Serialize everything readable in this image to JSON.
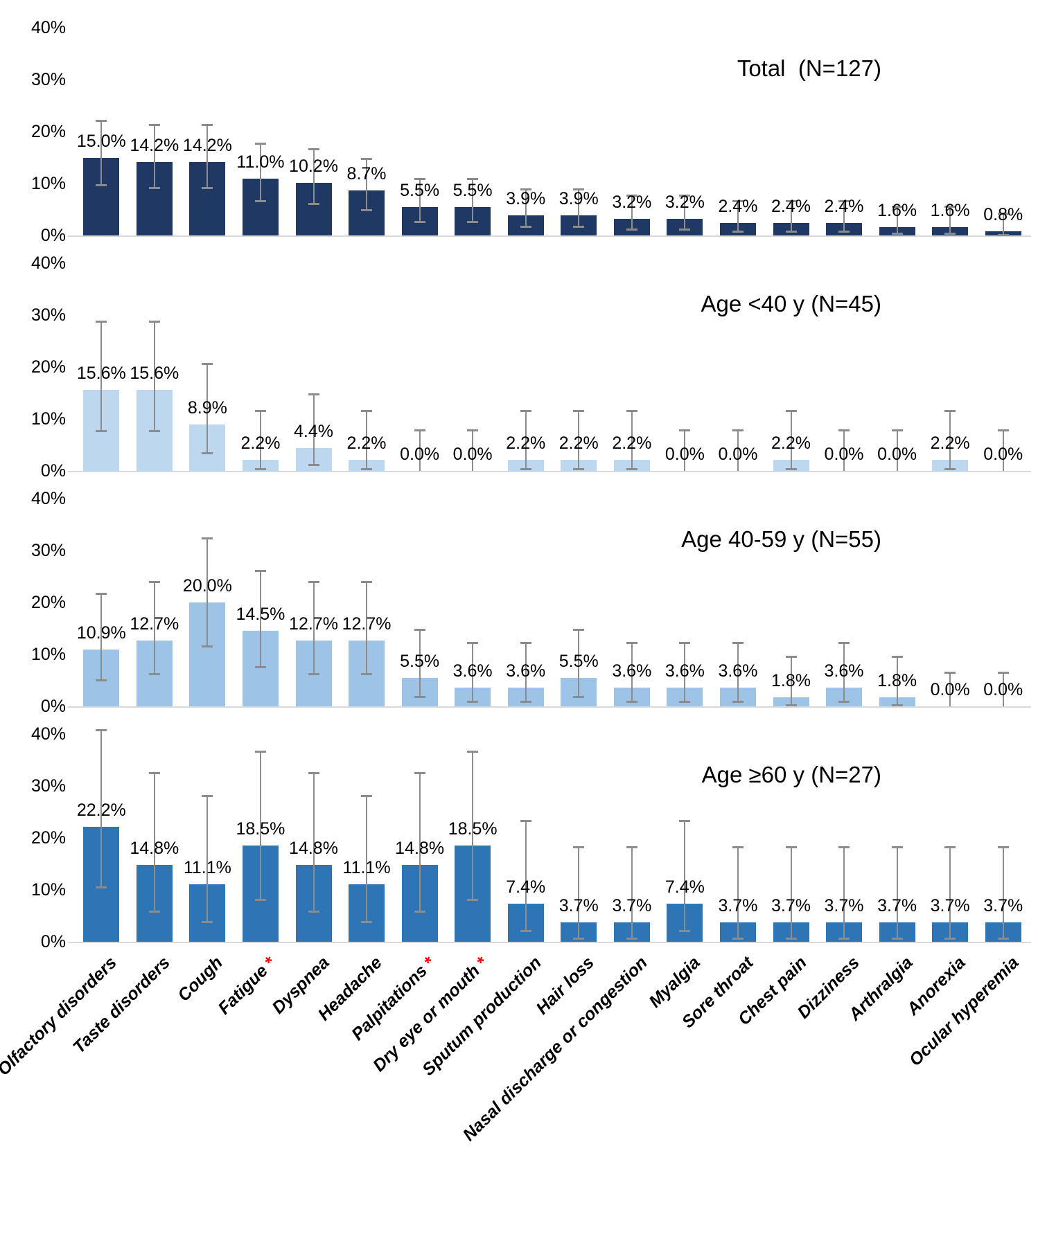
{
  "chart_data": {
    "type": "bar",
    "description": "Prevalence of persistent symptoms with 95% confidence interval error bars, shown for the total cohort and three age subgroups",
    "categories": [
      "Olfactory disorders",
      "Taste disorders",
      "Cough",
      "Fatigue",
      "Dyspnea",
      "Headache",
      "Palpitations",
      "Dry eye or mouth",
      "Sputum production",
      "Hair loss",
      "Nasal discharge or congestion",
      "Myalgia",
      "Sore throat",
      "Chest pain",
      "Dizziness",
      "Arthralgia",
      "Anorexia",
      "Ocular hyperemia"
    ],
    "starred_categories": [
      "Fatigue",
      "Palpitations",
      "Dry eye or mouth"
    ],
    "star_symbol": "*",
    "annotation_star_color": "#ff0000",
    "x_tick_rotation_deg": 45,
    "ylim": [
      0,
      40
    ],
    "yticks": [
      "40%",
      "30%",
      "20%",
      "10%",
      "0%"
    ],
    "value_suffix": "%",
    "error_bars": true,
    "error_bar_color": "#8c8c8c",
    "axis_line_color": "#d9d9d9",
    "series": [
      {
        "name": "Total  (N=127)",
        "n": 127,
        "color": "#1f3864",
        "values": [
          15.0,
          14.2,
          14.2,
          11.0,
          10.2,
          8.7,
          5.5,
          5.5,
          3.9,
          3.9,
          3.2,
          3.2,
          2.4,
          2.4,
          2.4,
          1.6,
          1.6,
          0.8
        ],
        "labels": [
          "15.0%",
          "14.2%",
          "14.2%",
          "11.0%",
          "10.2%",
          "8.7%",
          "5.5%",
          "5.5%",
          "3.9%",
          "3.9%",
          "3.2%",
          "3.2%",
          "2.4%",
          "2.4%",
          "2.4%",
          "1.6%",
          "1.6%",
          "0.8%"
        ],
        "ci_low": [
          9.8,
          9.2,
          9.2,
          6.7,
          6.1,
          4.9,
          2.7,
          2.7,
          1.7,
          1.7,
          1.2,
          1.2,
          0.8,
          0.8,
          0.8,
          0.4,
          0.4,
          0.1
        ],
        "ci_high": [
          22.2,
          21.3,
          21.3,
          17.7,
          16.7,
          14.8,
          10.9,
          10.9,
          8.9,
          8.9,
          7.8,
          7.8,
          6.7,
          6.7,
          6.7,
          5.6,
          5.6,
          4.3
        ]
      },
      {
        "name": "Age <40 y (N=45)",
        "n": 45,
        "color": "#bdd7ee",
        "values": [
          15.6,
          15.6,
          8.9,
          2.2,
          4.4,
          2.2,
          0.0,
          0.0,
          2.2,
          2.2,
          2.2,
          0.0,
          0.0,
          2.2,
          0.0,
          0.0,
          2.2,
          0.0
        ],
        "labels": [
          "15.6%",
          "15.6%",
          "8.9%",
          "2.2%",
          "4.4%",
          "2.2%",
          "0.0%",
          "0.0%",
          "2.2%",
          "2.2%",
          "2.2%",
          "0.0%",
          "0.0%",
          "2.2%",
          "0.0%",
          "0.0%",
          "2.2%",
          "0.0%"
        ],
        "ci_low": [
          7.8,
          7.8,
          3.5,
          0.4,
          1.2,
          0.4,
          0.0,
          0.0,
          0.4,
          0.4,
          0.4,
          0.0,
          0.0,
          0.4,
          0.0,
          0.0,
          0.4,
          0.0
        ],
        "ci_high": [
          28.8,
          28.8,
          20.7,
          11.6,
          14.8,
          11.6,
          7.9,
          7.9,
          11.6,
          11.6,
          11.6,
          7.9,
          7.9,
          11.6,
          7.9,
          7.9,
          11.6,
          7.9
        ]
      },
      {
        "name": "Age 40-59 y (N=55)",
        "n": 55,
        "color": "#9dc3e6",
        "values": [
          10.9,
          12.7,
          20.0,
          14.5,
          12.7,
          12.7,
          5.5,
          3.6,
          3.6,
          5.5,
          3.6,
          3.6,
          3.6,
          1.8,
          3.6,
          1.8,
          0.0,
          0.0
        ],
        "labels": [
          "10.9%",
          "12.7%",
          "20.0%",
          "14.5%",
          "12.7%",
          "12.7%",
          "5.5%",
          "3.6%",
          "3.6%",
          "5.5%",
          "3.6%",
          "3.6%",
          "3.6%",
          "1.8%",
          "3.6%",
          "1.8%",
          "0.0%",
          "0.0%"
        ],
        "ci_low": [
          5.1,
          6.3,
          11.6,
          7.6,
          6.3,
          6.3,
          1.9,
          1.0,
          1.0,
          1.9,
          1.0,
          1.0,
          1.0,
          0.3,
          1.0,
          0.3,
          0.0,
          0.0
        ],
        "ci_high": [
          21.8,
          24.0,
          32.4,
          26.2,
          24.0,
          24.0,
          14.8,
          12.3,
          12.3,
          14.8,
          12.3,
          12.3,
          12.3,
          9.6,
          12.3,
          9.6,
          6.5,
          6.5
        ]
      },
      {
        "name": "Age ≥60 y (N=27)",
        "n": 27,
        "color": "#2e75b6",
        "values": [
          22.2,
          14.8,
          11.1,
          18.5,
          14.8,
          11.1,
          14.8,
          18.5,
          7.4,
          3.7,
          3.7,
          7.4,
          3.7,
          3.7,
          3.7,
          3.7,
          3.7,
          3.7
        ],
        "labels": [
          "22.2%",
          "14.8%",
          "11.1%",
          "18.5%",
          "14.8%",
          "11.1%",
          "14.8%",
          "18.5%",
          "7.4%",
          "3.7%",
          "3.7%",
          "7.4%",
          "3.7%",
          "3.7%",
          "3.7%",
          "3.7%",
          "3.7%",
          "3.7%"
        ],
        "ci_low": [
          10.6,
          5.9,
          3.9,
          8.2,
          5.9,
          3.9,
          5.9,
          8.2,
          2.1,
          0.7,
          0.7,
          2.1,
          0.7,
          0.7,
          0.7,
          0.7,
          0.7,
          0.7
        ],
        "ci_high": [
          40.8,
          32.5,
          28.1,
          36.7,
          32.5,
          28.1,
          32.5,
          36.7,
          23.4,
          18.3,
          18.3,
          23.4,
          18.3,
          18.3,
          18.3,
          18.3,
          18.3,
          18.3
        ]
      }
    ]
  }
}
